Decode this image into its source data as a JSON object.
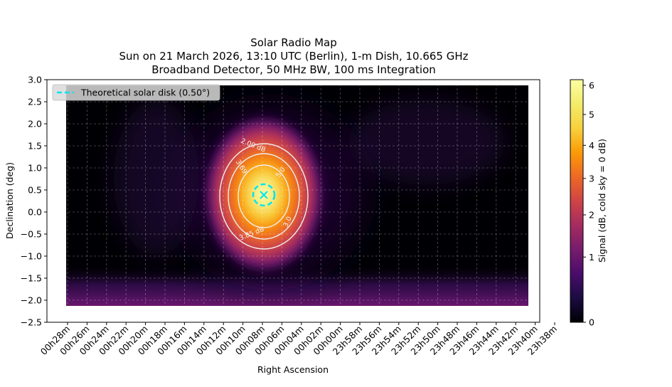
{
  "chart_data": {
    "type": "heatmap",
    "title_lines": [
      "Solar Radio Map",
      "Sun on 21 March 2026, 13:10 UTC (Berlin), 1-m Dish, 10.665 GHz",
      "Broadband Detector, 50 MHz BW, 100 ms Integration"
    ],
    "xlabel": "Right Ascension",
    "ylabel": "Declination (deg)",
    "ylim": [
      -2.5,
      3.0
    ],
    "y_ticks": [
      "3.0",
      "2.5",
      "2.0",
      "1.5",
      "1.0",
      "0.5",
      "0.0",
      "−0.5",
      "−1.0",
      "−1.5",
      "−2.0",
      "−2.5"
    ],
    "x_ticks": [
      "00h28m",
      "00h26m",
      "00h24m",
      "00h22m",
      "00h20m",
      "00h18m",
      "00h16m",
      "00h14m",
      "00h12m",
      "00h10m",
      "00h08m",
      "00h06m",
      "00h04m",
      "00h02m",
      "00h00m",
      "23h58m",
      "23h56m",
      "23h54m",
      "23h52m",
      "23h50m",
      "23h48m",
      "23h46m",
      "23h44m",
      "23h42m",
      "23h40m",
      "23h38m"
    ],
    "colorbar": {
      "label": "Signal (dB, cold sky = 0 dB)",
      "range": [
        0,
        6.2
      ],
      "ticks": [
        "0",
        "1",
        "2",
        "3",
        "4",
        "5",
        "6"
      ],
      "colormap": "inferno"
    },
    "peak": {
      "ra": "00h06m",
      "dec": 0.35,
      "value": 6.2
    },
    "contour_labels": [
      "2.00 dB",
      "3.69",
      "3.85 dB",
      "5.0",
      "3.0"
    ],
    "legend": {
      "entry": "Theoretical solar disk (0.50°)",
      "placement": "upper-left",
      "line_color": "#00e5ee"
    },
    "grid": true
  }
}
